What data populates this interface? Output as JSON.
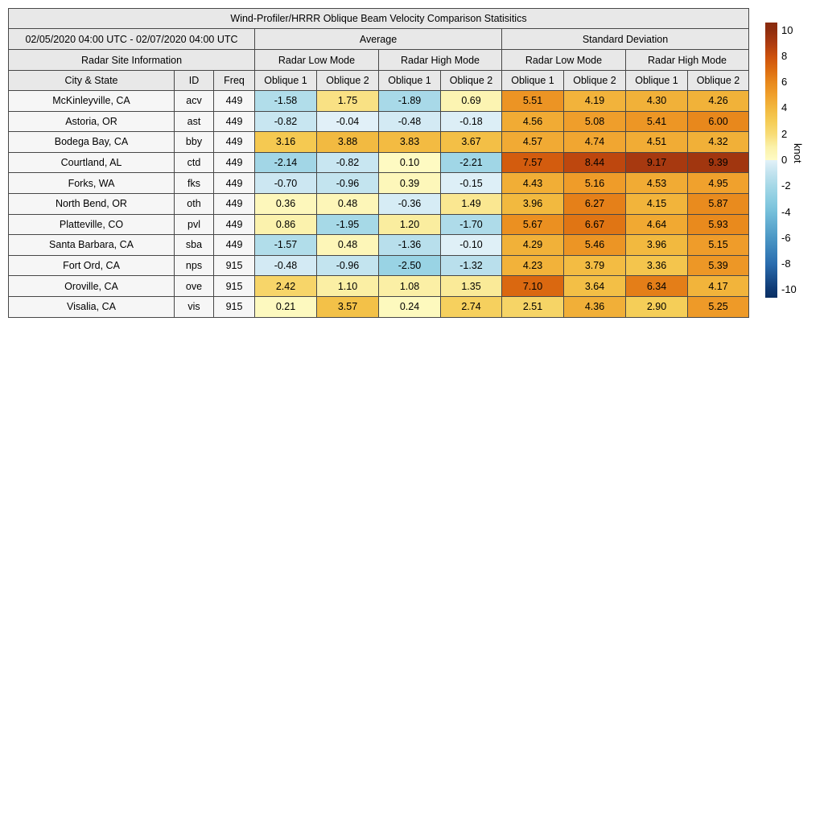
{
  "title": "Wind-Profiler/HRRR Oblique Beam Velocity Comparison Statisitics",
  "table_header": {
    "date_range": "02/05/2020 04:00 UTC - 02/07/2020 04:00 UTC",
    "average_label": "Average",
    "std_label": "Standard Deviation",
    "site_info_label": "Radar Site Information",
    "mode_labels": [
      "Radar Low Mode",
      "Radar High Mode",
      "Radar Low Mode",
      "Radar High Mode"
    ],
    "column_labels": [
      "City & State",
      "ID",
      "Freq",
      "Oblique 1",
      "Oblique 2",
      "Oblique 1",
      "Oblique 2",
      "Oblique 1",
      "Oblique 2",
      "Oblique 1",
      "Oblique 2"
    ]
  },
  "chart_data": {
    "type": "heatmap",
    "title": "Wind-Profiler/HRRR Oblique Beam Velocity Comparison Statisitics",
    "column_structure": {
      "stat_groups": [
        "Average",
        "Standard Deviation"
      ],
      "modes_per_group": [
        "Radar Low Mode",
        "Radar High Mode"
      ],
      "beams_per_mode": [
        "Oblique 1",
        "Oblique 2"
      ]
    },
    "rows": [
      {
        "city_state": "McKinleyville, CA",
        "id": "acv",
        "freq": "449",
        "values": [
          -1.58,
          1.75,
          -1.89,
          0.69,
          5.51,
          4.19,
          4.3,
          4.26
        ]
      },
      {
        "city_state": "Astoria, OR",
        "id": "ast",
        "freq": "449",
        "values": [
          -0.82,
          -0.04,
          -0.48,
          -0.18,
          4.56,
          5.08,
          5.41,
          6.0
        ]
      },
      {
        "city_state": "Bodega Bay, CA",
        "id": "bby",
        "freq": "449",
        "values": [
          3.16,
          3.88,
          3.83,
          3.67,
          4.57,
          4.74,
          4.51,
          4.32
        ]
      },
      {
        "city_state": "Courtland, AL",
        "id": "ctd",
        "freq": "449",
        "values": [
          -2.14,
          -0.82,
          0.1,
          -2.21,
          7.57,
          8.44,
          9.17,
          9.39
        ]
      },
      {
        "city_state": "Forks, WA",
        "id": "fks",
        "freq": "449",
        "values": [
          -0.7,
          -0.96,
          0.39,
          -0.15,
          4.43,
          5.16,
          4.53,
          4.95
        ]
      },
      {
        "city_state": "North Bend, OR",
        "id": "oth",
        "freq": "449",
        "values": [
          0.36,
          0.48,
          -0.36,
          1.49,
          3.96,
          6.27,
          4.15,
          5.87
        ]
      },
      {
        "city_state": "Platteville, CO",
        "id": "pvl",
        "freq": "449",
        "values": [
          0.86,
          -1.95,
          1.2,
          -1.7,
          5.67,
          6.67,
          4.64,
          5.93
        ]
      },
      {
        "city_state": "Santa Barbara, CA",
        "id": "sba",
        "freq": "449",
        "values": [
          -1.57,
          0.48,
          -1.36,
          -0.1,
          4.29,
          5.46,
          3.96,
          5.15
        ]
      },
      {
        "city_state": "Fort Ord, CA",
        "id": "nps",
        "freq": "915",
        "values": [
          -0.48,
          -0.96,
          -2.5,
          -1.32,
          4.23,
          3.79,
          3.36,
          5.39
        ]
      },
      {
        "city_state": "Oroville, CA",
        "id": "ove",
        "freq": "915",
        "values": [
          2.42,
          1.1,
          1.08,
          1.35,
          7.1,
          3.64,
          6.34,
          4.17
        ]
      },
      {
        "city_state": "Visalia, CA",
        "id": "vis",
        "freq": "915",
        "values": [
          0.21,
          3.57,
          0.24,
          2.74,
          2.51,
          4.36,
          2.9,
          5.25
        ]
      }
    ],
    "colorbar": {
      "label": "knot",
      "min": -10,
      "max": 10,
      "ticks": [
        10,
        8,
        6,
        4,
        2,
        0,
        -2,
        -4,
        -6,
        -8,
        -10
      ]
    },
    "value_format": "two_decimals",
    "grid": true,
    "legend_position": "right-colorbar"
  },
  "colors": {
    "header_bg": "#e8e8e8",
    "label_cell_bg": "#f6f6f6",
    "border": "#474747",
    "text": "#000000",
    "colormap_positive": [
      [
        0,
        "#FEFBC5"
      ],
      [
        1,
        "#FBF1A9"
      ],
      [
        2,
        "#F8DC77"
      ],
      [
        3,
        "#F5CC55"
      ],
      [
        4,
        "#F2B83E"
      ],
      [
        5,
        "#F0A02C"
      ],
      [
        6,
        "#E8881C"
      ],
      [
        7,
        "#DC6B10"
      ],
      [
        8,
        "#CC500D"
      ],
      [
        9,
        "#AC3B10"
      ],
      [
        10,
        "#8F2D0E"
      ],
      [
        10.6,
        "#892B0E"
      ]
    ],
    "colormap_negative": [
      [
        0,
        "#E2F1F8"
      ],
      [
        -1,
        "#C2E3EF"
      ],
      [
        -2,
        "#A5D8E7"
      ],
      [
        -3,
        "#8CCDE1"
      ],
      [
        -4,
        "#75BFDA"
      ],
      [
        -5,
        "#60ABD0"
      ],
      [
        -6,
        "#4B97C5"
      ],
      [
        -7,
        "#3A82BA"
      ],
      [
        -8,
        "#2A6CAE"
      ],
      [
        -9,
        "#1C5290"
      ],
      [
        -10,
        "#0E3872"
      ],
      [
        -10.6,
        "#0A2F62"
      ]
    ]
  }
}
